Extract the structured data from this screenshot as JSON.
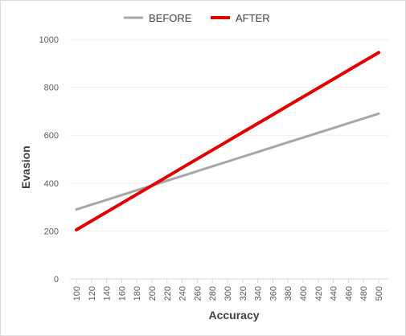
{
  "chart_data": {
    "type": "line",
    "title": "",
    "xlabel": "Accuracy",
    "ylabel": "Evasion",
    "x": [
      100,
      120,
      140,
      160,
      180,
      200,
      220,
      240,
      260,
      280,
      300,
      320,
      340,
      360,
      380,
      400,
      420,
      440,
      460,
      480,
      500
    ],
    "xlim": [
      100,
      500
    ],
    "ylim": [
      0,
      1000
    ],
    "yticks": [
      0,
      200,
      400,
      600,
      800,
      1000
    ],
    "grid": true,
    "legend_position": "top",
    "series": [
      {
        "name": "BEFORE",
        "color": "#a6a6a6",
        "values": [
          290,
          310,
          330,
          350,
          370,
          390,
          410,
          430,
          450,
          470,
          490,
          510,
          530,
          550,
          570,
          590,
          610,
          630,
          650,
          670,
          690
        ]
      },
      {
        "name": "AFTER",
        "color": "#e00000",
        "values": [
          205,
          242,
          279,
          316,
          353,
          390,
          427,
          464,
          501,
          538,
          575,
          612,
          649,
          686,
          723,
          760,
          797,
          834,
          871,
          908,
          945
        ]
      }
    ]
  }
}
